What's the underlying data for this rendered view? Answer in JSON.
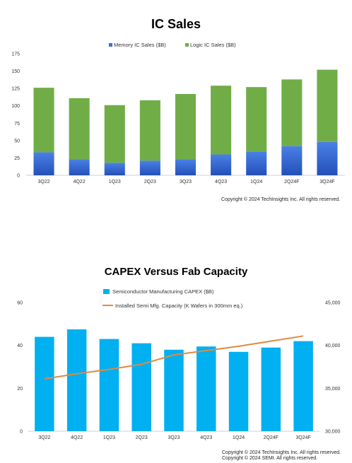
{
  "chart_data": [
    {
      "type": "bar",
      "stacked": true,
      "title": "IC Sales",
      "categories": [
        "3Q22",
        "4Q22",
        "1Q23",
        "2Q23",
        "3Q23",
        "4Q23",
        "1Q24",
        "2Q24F",
        "3Q24F"
      ],
      "series": [
        {
          "name": "Memory IC Sales ($B)",
          "color": "#3e6fd6",
          "values": [
            33,
            23,
            18,
            21,
            23,
            30,
            34,
            42,
            48
          ]
        },
        {
          "name": "Logic IC Sales ($B)",
          "color": "#70ad47",
          "values": [
            93,
            88,
            83,
            87,
            94,
            99,
            93,
            96,
            104
          ]
        }
      ],
      "ylim": [
        0,
        175
      ],
      "yticks": [
        "0",
        "25",
        "50",
        "75",
        "100",
        "125",
        "150",
        "175"
      ],
      "legend": "top",
      "grid": false
    },
    {
      "type": "bar+line",
      "title": "CAPEX Versus Fab Capacity",
      "categories": [
        "3Q22",
        "4Q22",
        "1Q23",
        "2Q23",
        "3Q23",
        "4Q23",
        "1Q24",
        "2Q24F",
        "3Q24F"
      ],
      "series": [
        {
          "name": "Semiconductor Manufacturing CAPEX ($B)",
          "type": "bar",
          "axis": "left",
          "color": "#00b0f0",
          "values": [
            44,
            47.5,
            43,
            41,
            38,
            39.5,
            37,
            39,
            42
          ]
        },
        {
          "name": "Installed Semi Mfg. Capacity (K Wafers in 300mm eq.)",
          "type": "line",
          "axis": "right",
          "color": "#e08a43",
          "values": [
            36100,
            36700,
            37200,
            37800,
            38900,
            39400,
            39900,
            40500,
            41100
          ]
        }
      ],
      "ylim": [
        0,
        60
      ],
      "yticks": [
        "0",
        "20",
        "40",
        "60"
      ],
      "y2lim": [
        30000,
        45000
      ],
      "y2ticks": [
        "30,000",
        "35,000",
        "40,000",
        "45,000"
      ],
      "legend": "top",
      "grid": false
    }
  ],
  "copyright": {
    "chart1": "Copyright © 2024 TechInsights Inc.  All rights reserved.",
    "chart2_line1": "Copyright © 2024 TechInsights Inc.  All rights reserved.",
    "chart2_line2": "Copyright © 2024 SEMI.  All rights reserved."
  }
}
